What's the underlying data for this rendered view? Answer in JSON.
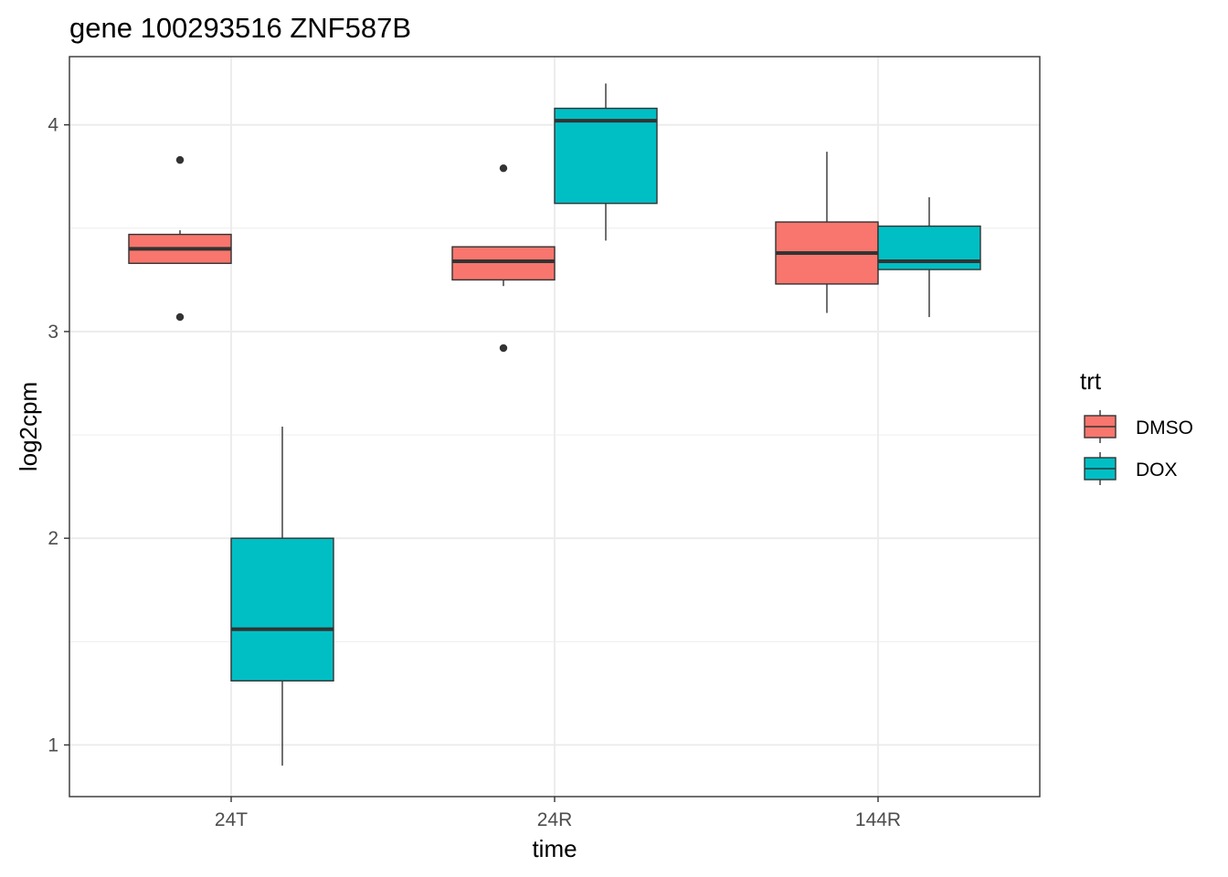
{
  "chart_data": {
    "type": "boxplot",
    "title": "gene 100293516 ZNF587B",
    "xlabel": "time",
    "ylabel": "log2cpm",
    "categories": [
      "24T",
      "24R",
      "144R"
    ],
    "ylim": [
      0.75,
      4.33
    ],
    "yticks": [
      1,
      2,
      3,
      4
    ],
    "grid": true,
    "legend": {
      "title": "trt",
      "position": "right"
    },
    "series": [
      {
        "name": "DMSO",
        "color": "#F8766D",
        "boxes": [
          {
            "category": "24T",
            "whisker_low": 3.33,
            "q1": 3.33,
            "median": 3.4,
            "q3": 3.47,
            "whisker_high": 3.49,
            "outliers": [
              3.83,
              3.07
            ]
          },
          {
            "category": "24R",
            "whisker_low": 3.22,
            "q1": 3.25,
            "median": 3.34,
            "q3": 3.41,
            "whisker_high": 3.41,
            "outliers": [
              3.79,
              2.92
            ]
          },
          {
            "category": "144R",
            "whisker_low": 3.09,
            "q1": 3.23,
            "median": 3.38,
            "q3": 3.53,
            "whisker_high": 3.87,
            "outliers": []
          }
        ]
      },
      {
        "name": "DOX",
        "color": "#00BFC4",
        "boxes": [
          {
            "category": "24T",
            "whisker_low": 0.9,
            "q1": 1.31,
            "median": 1.56,
            "q3": 2.0,
            "whisker_high": 2.54,
            "outliers": []
          },
          {
            "category": "24R",
            "whisker_low": 3.44,
            "q1": 3.62,
            "median": 4.02,
            "q3": 4.08,
            "whisker_high": 4.2,
            "outliers": []
          },
          {
            "category": "144R",
            "whisker_low": 3.07,
            "q1": 3.3,
            "median": 3.34,
            "q3": 3.51,
            "whisker_high": 3.65,
            "outliers": []
          }
        ]
      }
    ]
  }
}
